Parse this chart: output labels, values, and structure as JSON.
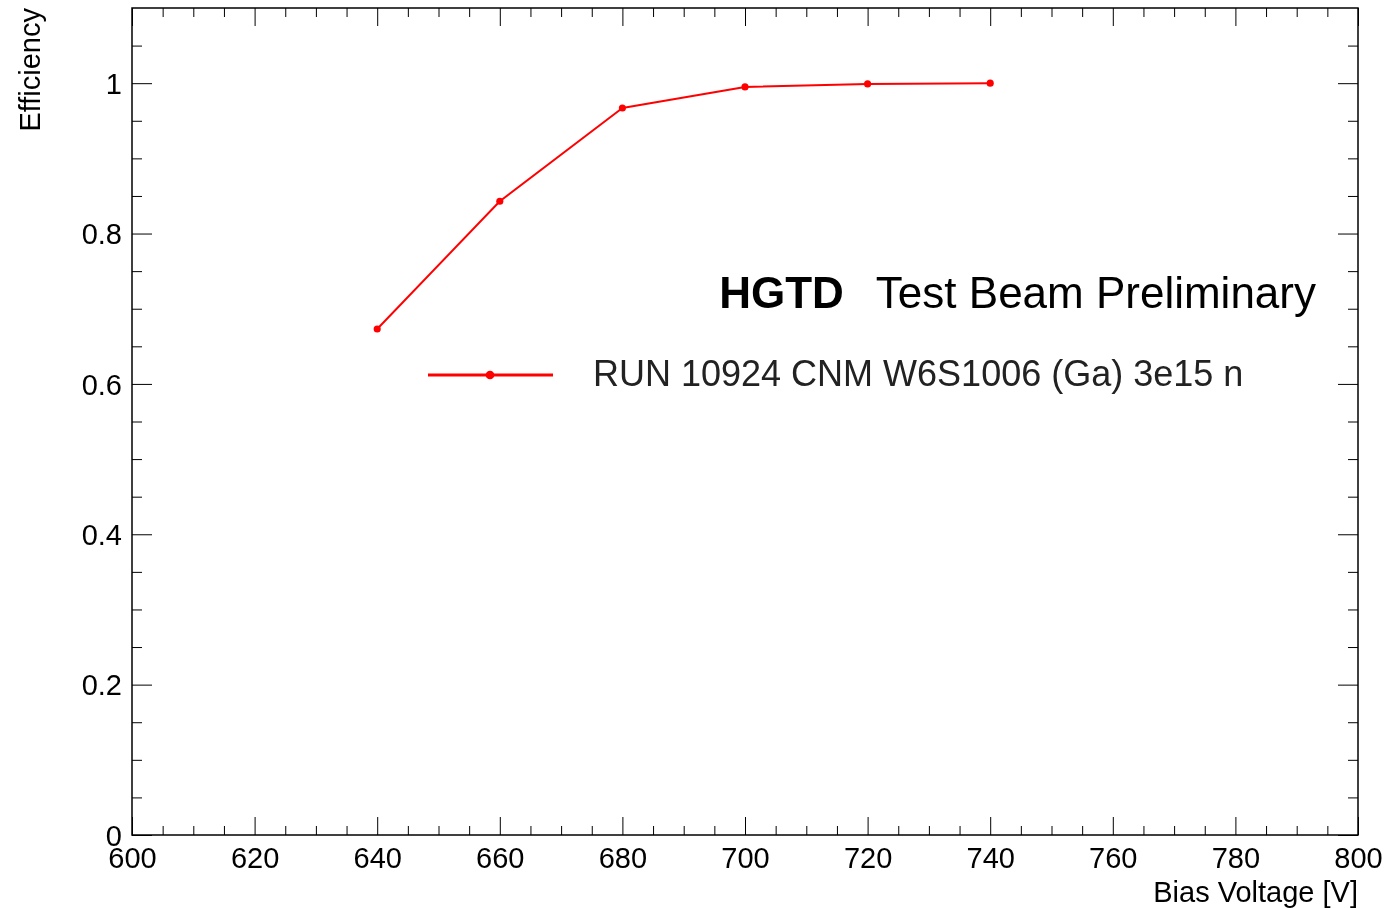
{
  "chart_data": {
    "type": "line",
    "xlabel": "Bias Voltage [V]",
    "ylabel": "Efficiency",
    "x": [
      640,
      660,
      680,
      700,
      720,
      740
    ],
    "series": [
      {
        "name": "RUN 10924 CNM W6S1006 (Ga) 3e15 n",
        "color": "#ff0000",
        "values": [
          0.673,
          0.843,
          0.967,
          0.995,
          0.999,
          1.0
        ]
      }
    ],
    "xlim": [
      600,
      800
    ],
    "ylim": [
      0,
      1.1
    ],
    "xticks": [
      600,
      {
        "value": 605,
        "label": null
      },
      {
        "value": 610,
        "label": null
      },
      {
        "value": 615,
        "label": null
      },
      620,
      {
        "value": 625,
        "label": null
      },
      {
        "value": 630,
        "label": null
      },
      {
        "value": 635,
        "label": null
      },
      640,
      {
        "value": 645,
        "label": null
      },
      {
        "value": 650,
        "label": null
      },
      {
        "value": 655,
        "label": null
      },
      660,
      {
        "value": 665,
        "label": null
      },
      {
        "value": 670,
        "label": null
      },
      {
        "value": 675,
        "label": null
      },
      680,
      {
        "value": 685,
        "label": null
      },
      {
        "value": 690,
        "label": null
      },
      {
        "value": 695,
        "label": null
      },
      700,
      {
        "value": 705,
        "label": null
      },
      {
        "value": 710,
        "label": null
      },
      {
        "value": 715,
        "label": null
      },
      720,
      {
        "value": 725,
        "label": null
      },
      {
        "value": 730,
        "label": null
      },
      {
        "value": 735,
        "label": null
      },
      740,
      {
        "value": 745,
        "label": null
      },
      {
        "value": 750,
        "label": null
      },
      {
        "value": 755,
        "label": null
      },
      760,
      {
        "value": 765,
        "label": null
      },
      {
        "value": 770,
        "label": null
      },
      {
        "value": 775,
        "label": null
      },
      780,
      {
        "value": 785,
        "label": null
      },
      {
        "value": 790,
        "label": null
      },
      {
        "value": 795,
        "label": null
      },
      800
    ],
    "yticks": [
      0,
      {
        "value": 0.05,
        "label": null
      },
      {
        "value": 0.1,
        "label": null
      },
      {
        "value": 0.15,
        "label": null
      },
      0.2,
      {
        "value": 0.25,
        "label": null
      },
      {
        "value": 0.3,
        "label": null
      },
      {
        "value": 0.35,
        "label": null
      },
      0.4,
      {
        "value": 0.45,
        "label": null
      },
      {
        "value": 0.5,
        "label": null
      },
      {
        "value": 0.55,
        "label": null
      },
      0.6,
      {
        "value": 0.65,
        "label": null
      },
      {
        "value": 0.7,
        "label": null
      },
      {
        "value": 0.75,
        "label": null
      },
      0.8,
      {
        "value": 0.85,
        "label": null
      },
      {
        "value": 0.9,
        "label": null
      },
      {
        "value": 0.95,
        "label": null
      },
      1,
      {
        "value": 1.05,
        "label": null
      }
    ],
    "annotations": [
      "HGTD",
      "Test Beam Preliminary"
    ],
    "legend": "right",
    "marker": "circle",
    "line_style": "solid",
    "grid": false
  }
}
